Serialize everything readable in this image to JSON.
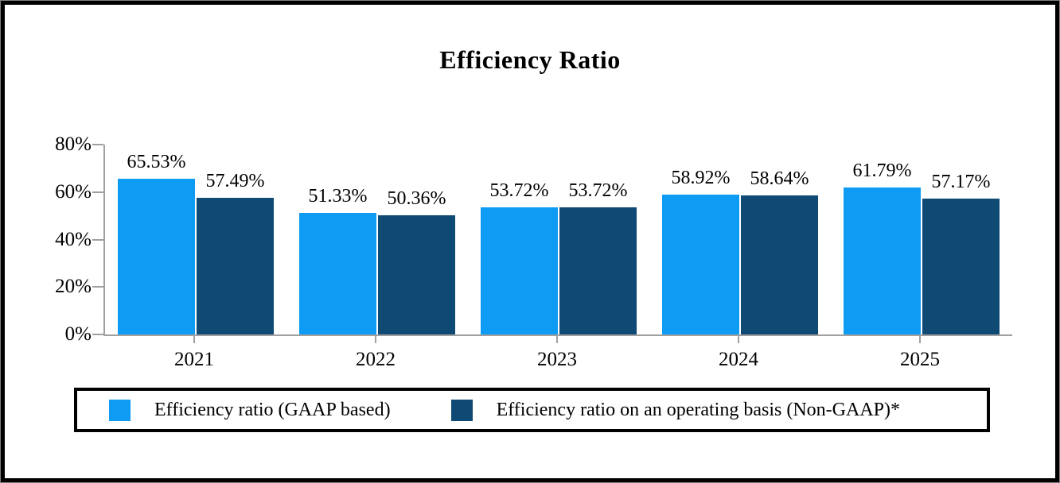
{
  "frame": {
    "outer_border_color": "#000000",
    "outer_hairline_color": "#7f7f7f",
    "background": "#ffffff"
  },
  "chart_data": {
    "type": "bar",
    "title": "Efficiency Ratio",
    "categories": [
      "2021",
      "2022",
      "2023",
      "2024",
      "2025"
    ],
    "series": [
      {
        "name": "Efficiency ratio (GAAP based)",
        "color": "#0D9BF3",
        "values": [
          65.53,
          51.33,
          53.72,
          58.92,
          61.79
        ]
      },
      {
        "name": "Efficiency ratio on an operating basis (Non-GAAP)*",
        "color": "#0E4A74",
        "values": [
          57.49,
          50.36,
          53.72,
          58.64,
          57.17
        ]
      }
    ],
    "data_labels": [
      [
        "65.53%",
        "51.33%",
        "53.72%",
        "58.92%",
        "61.79%"
      ],
      [
        "57.49%",
        "50.36%",
        "53.72%",
        "58.64%",
        "57.17%"
      ]
    ],
    "xlabel": "",
    "ylabel": "",
    "ylim": [
      0,
      80
    ],
    "ytick_labels": [
      "0%",
      "20%",
      "40%",
      "60%",
      "80%"
    ],
    "grid": false,
    "axis_color": "#A0A0A0",
    "legend_position": "bottom"
  }
}
